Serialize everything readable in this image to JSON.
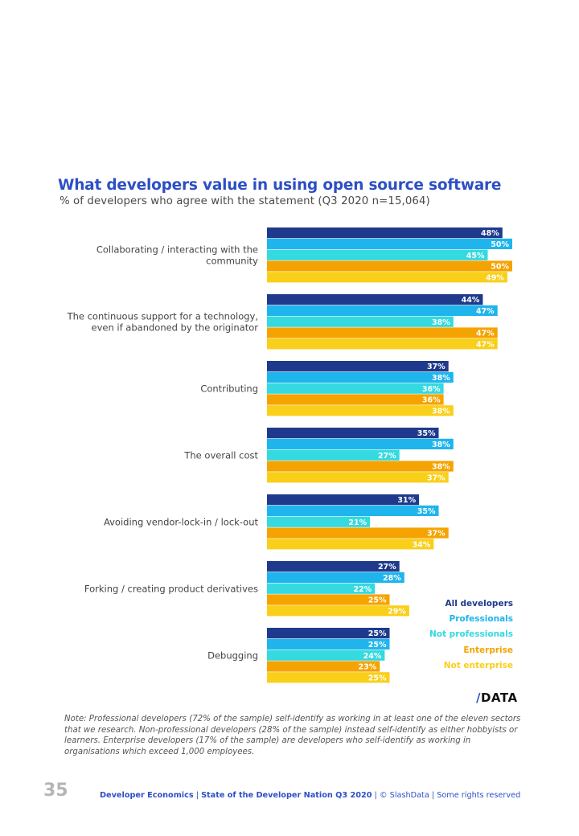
{
  "page": {
    "page_number": "35",
    "footer": {
      "part1": "Developer Economics",
      "sep": " | ",
      "part2": "State of the Developer Nation Q3 2020",
      "part3": "© SlashData",
      "part4": "Some rights reserved"
    },
    "logo": {
      "slash": "/",
      "text": "DATA"
    },
    "note": "Note:  Professional developers (72% of the sample) self-identify as working in at least one of the eleven sectors that we research. Non-professional developers (28% of the sample) instead self-identify as either hobbyists or learners. Enterprise developers (17% of the sample) are developers who self-identify as working in organisations which exceed 1,000 employees."
  },
  "chart_data": {
    "type": "bar",
    "orientation": "horizontal",
    "title": "What developers value in using open source software",
    "subtitle": "% of developers who agree with the statement (Q3 2020 n=15,064)",
    "xlabel": "",
    "ylabel": "",
    "xlim": [
      0,
      50
    ],
    "grid": false,
    "legend_position": "bottom-right",
    "value_suffix": "%",
    "categories": [
      [
        "Collaborating / interacting with the",
        "community"
      ],
      [
        "The continuous support for a technology,",
        "even if abandoned by the originator"
      ],
      [
        "Contributing"
      ],
      [
        "The overall cost"
      ],
      [
        "Avoiding vendor-lock-in / lock-out"
      ],
      [
        "Forking / creating product derivatives"
      ],
      [
        "Debugging"
      ]
    ],
    "series": [
      {
        "name": "All developers",
        "color": "#1f3a8c",
        "values": [
          48,
          44,
          37,
          35,
          31,
          27,
          25
        ]
      },
      {
        "name": "Professionals",
        "color": "#1fb5ec",
        "values": [
          50,
          47,
          38,
          38,
          35,
          28,
          25
        ]
      },
      {
        "name": "Not professionals",
        "color": "#35d9e0",
        "values": [
          45,
          38,
          36,
          27,
          21,
          22,
          24
        ]
      },
      {
        "name": "Enterprise",
        "color": "#f5a300",
        "values": [
          50,
          47,
          36,
          38,
          37,
          25,
          23
        ]
      },
      {
        "name": "Not enterprise",
        "color": "#f9cf1a",
        "values": [
          49,
          47,
          38,
          37,
          34,
          29,
          25
        ]
      }
    ]
  }
}
